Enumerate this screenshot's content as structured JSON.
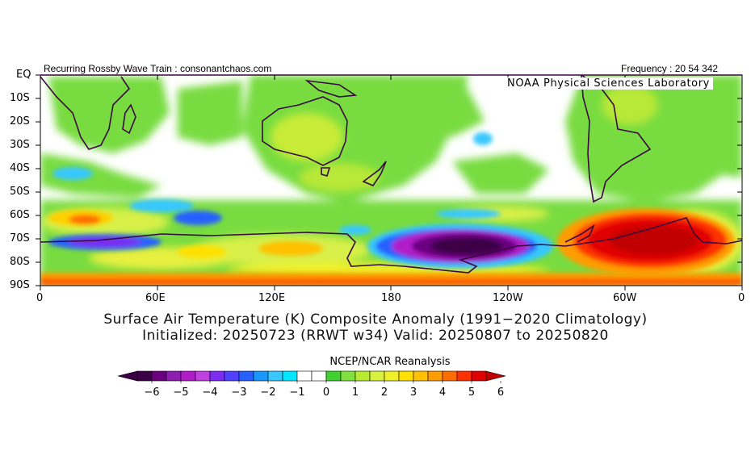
{
  "header": {
    "left": "Recurring Rossby Wave Train : consonantchaos.com",
    "right": "Frequency : 20 54 342",
    "lab": "NOAA Physical Sciences Laboratory"
  },
  "axes": {
    "lat_labels": [
      "EQ",
      "10S",
      "20S",
      "30S",
      "40S",
      "50S",
      "60S",
      "70S",
      "80S",
      "90S"
    ],
    "lon_labels": [
      "0",
      "60E",
      "120E",
      "180",
      "120W",
      "60W",
      "0"
    ]
  },
  "titles": {
    "line1": "Surface Air Temperature (K) Composite Anomaly (1991−2020 Climatology)",
    "line2": "Initialized: 20250723 (RRWT w34) Valid: 20250807 to 20250820"
  },
  "colorbar": {
    "label": "NCEP/NCAR Reanalysis",
    "ticks": [
      "−6",
      "−5",
      "−4",
      "−3",
      "−2",
      "−1",
      "0",
      "1",
      "2",
      "3",
      "4",
      "5",
      "6"
    ],
    "colors": [
      "#3c0046",
      "#6a0080",
      "#8c1fb0",
      "#b01cc8",
      "#c040e0",
      "#7a2cf0",
      "#5040ff",
      "#2860ff",
      "#1a96ff",
      "#38c8ff",
      "#00e8ff",
      "#ffffff",
      "#ffffff",
      "#40d030",
      "#80e040",
      "#b8ec30",
      "#d8f040",
      "#f0f028",
      "#ffe000",
      "#ffc000",
      "#ff9c00",
      "#ff6c00",
      "#ff3000",
      "#e00000"
    ],
    "under_color": "#3c0046",
    "over_color": "#c00000"
  }
}
